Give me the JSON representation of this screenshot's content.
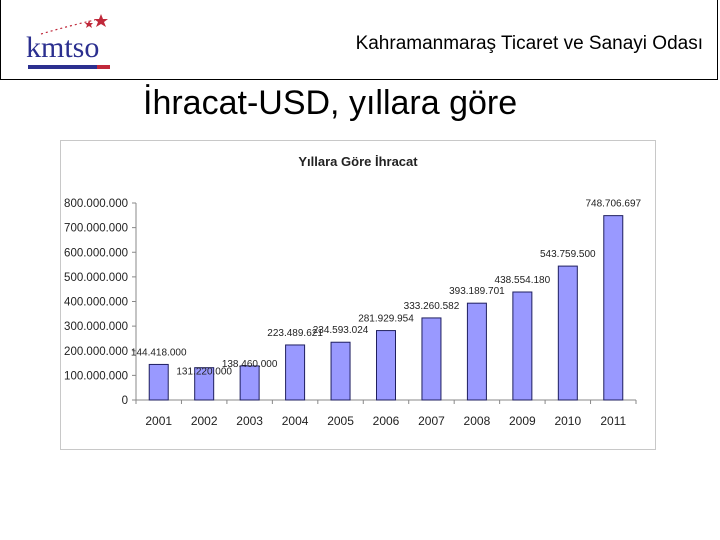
{
  "header": {
    "org_name": "Kahramanmaraş Ticaret ve Sanayi Odası",
    "logo_text": "kmtso"
  },
  "slide": {
    "title": "İhracat-USD, yıllara göre"
  },
  "chart_data": {
    "type": "bar",
    "title": "Yıllara Göre İhracat",
    "categories": [
      "2001",
      "2002",
      "2003",
      "2004",
      "2005",
      "2006",
      "2007",
      "2008",
      "2009",
      "2010",
      "2011"
    ],
    "values": [
      144418000,
      131220000,
      138460000,
      223489621,
      234593024,
      281929954,
      333260582,
      393189701,
      438554180,
      543759500,
      748706697
    ],
    "data_labels": [
      "144.418.000",
      "131.220.000",
      "138.460.000",
      "223.489.621",
      "234.593.024",
      "281.929.954",
      "333.260.582",
      "393.189.701",
      "438.554.180",
      "543.759.500",
      "748.706.697"
    ],
    "y_ticks": [
      0,
      100000000,
      200000000,
      300000000,
      400000000,
      500000000,
      600000000,
      700000000,
      800000000
    ],
    "y_tick_labels": [
      "0",
      "100.000.000",
      "200.000.000",
      "300.000.000",
      "400.000.000",
      "500.000.000",
      "600.000.000",
      "700.000.000",
      "800.000.000"
    ],
    "ylim": [
      0,
      800000000
    ],
    "xlabel": "",
    "ylabel": "",
    "grid": false,
    "legend": "none",
    "bar_color": "#9999ff",
    "bar_edge_color": "#1f1f5f"
  }
}
